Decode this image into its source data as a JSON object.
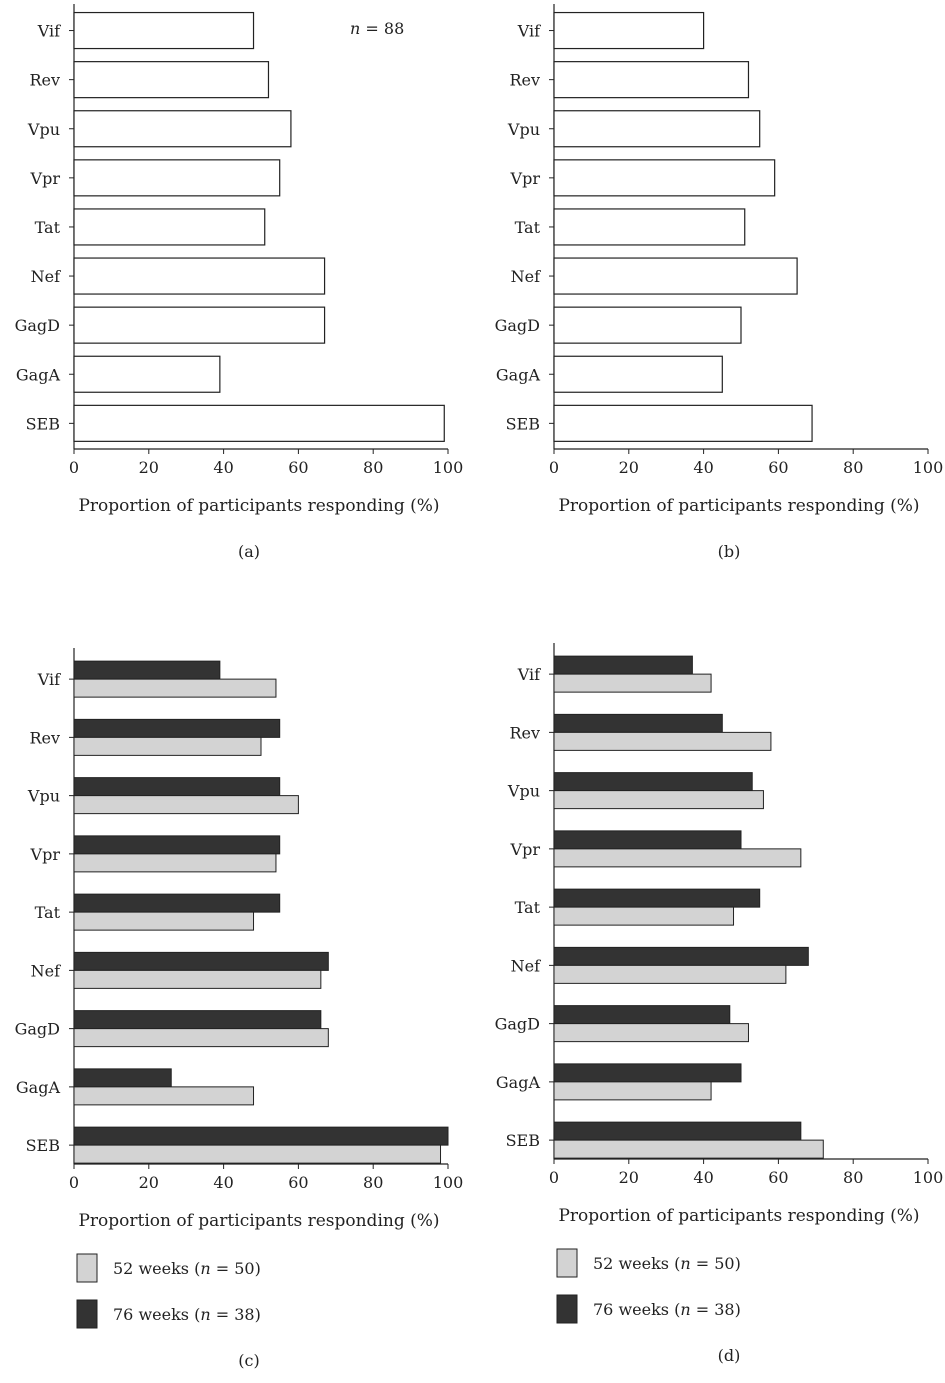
{
  "chart_data": [
    {
      "id": "a",
      "type": "bar",
      "orientation": "horizontal",
      "panel_label": "(a)",
      "annotation": "n = 88",
      "categories": [
        "Vif",
        "Rev",
        "Vpu",
        "Vpr",
        "Tat",
        "Nef",
        "GagD",
        "GagA",
        "SEB"
      ],
      "series": [
        {
          "values": [
            48,
            52,
            58,
            55,
            51,
            67,
            67,
            39,
            99
          ],
          "color": "#ffffff"
        }
      ],
      "xlabel": "Proportion of participants responding (%)",
      "xlim": [
        0,
        100
      ],
      "xticks": [
        "0",
        "20",
        "40",
        "60",
        "80",
        "100"
      ]
    },
    {
      "id": "b",
      "type": "bar",
      "orientation": "horizontal",
      "panel_label": "(b)",
      "categories": [
        "Vif",
        "Rev",
        "Vpu",
        "Vpr",
        "Tat",
        "Nef",
        "GagD",
        "GagA",
        "SEB"
      ],
      "series": [
        {
          "values": [
            40,
            52,
            55,
            59,
            51,
            65,
            50,
            45,
            69
          ],
          "color": "#ffffff"
        }
      ],
      "xlabel": "Proportion of participants responding (%)",
      "xlim": [
        0,
        100
      ],
      "xticks": [
        "0",
        "20",
        "40",
        "60",
        "80",
        "100"
      ]
    },
    {
      "id": "c",
      "type": "bar",
      "orientation": "horizontal",
      "panel_label": "(c)",
      "categories": [
        "Vif",
        "Rev",
        "Vpu",
        "Vpr",
        "Tat",
        "Nef",
        "GagD",
        "GagA",
        "SEB"
      ],
      "series": [
        {
          "name": "76 weeks (n = 38)",
          "values": [
            39,
            55,
            55,
            55,
            55,
            68,
            66,
            26,
            100
          ],
          "color": "#333333"
        },
        {
          "name": "52 weeks (n = 50)",
          "values": [
            54,
            50,
            60,
            54,
            48,
            66,
            68,
            48,
            98
          ],
          "color": "#d3d3d3"
        }
      ],
      "legend": [
        {
          "label": "52 weeks (n = 50)",
          "color": "#d3d3d3"
        },
        {
          "label": "76 weeks (n = 38)",
          "color": "#333333"
        }
      ],
      "xlabel": "Proportion of participants responding (%)",
      "xlim": [
        0,
        100
      ],
      "xticks": [
        "0",
        "20",
        "40",
        "60",
        "80",
        "100"
      ]
    },
    {
      "id": "d",
      "type": "bar",
      "orientation": "horizontal",
      "panel_label": "(d)",
      "categories": [
        "Vif",
        "Rev",
        "Vpu",
        "Vpr",
        "Tat",
        "Nef",
        "GagD",
        "GagA",
        "SEB"
      ],
      "series": [
        {
          "name": "76 weeks (n = 38)",
          "values": [
            37,
            45,
            53,
            50,
            55,
            68,
            47,
            50,
            66
          ],
          "color": "#333333"
        },
        {
          "name": "52 weeks (n = 50)",
          "values": [
            42,
            58,
            56,
            66,
            48,
            62,
            52,
            42,
            72
          ],
          "color": "#d3d3d3"
        }
      ],
      "legend": [
        {
          "label": "52 weeks (n = 50)",
          "color": "#d3d3d3"
        },
        {
          "label": "76 weeks (n = 38)",
          "color": "#333333"
        }
      ],
      "xlabel": "Proportion of participants responding (%)",
      "xlim": [
        0,
        100
      ],
      "xticks": [
        "0",
        "20",
        "40",
        "60",
        "80",
        "100"
      ]
    }
  ]
}
